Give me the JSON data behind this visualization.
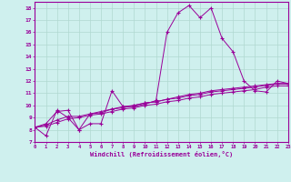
{
  "xlabel": "Windchill (Refroidissement éolien,°C)",
  "background_color": "#cff0ee",
  "line_color": "#990099",
  "x_data": [
    0,
    1,
    2,
    3,
    4,
    5,
    6,
    7,
    8,
    9,
    10,
    11,
    12,
    13,
    14,
    15,
    16,
    17,
    18,
    19,
    20,
    21,
    22,
    23
  ],
  "series": [
    [
      8.2,
      7.5,
      9.6,
      9.0,
      8.0,
      8.5,
      8.5,
      11.2,
      9.9,
      9.9,
      10.1,
      10.4,
      16.0,
      17.6,
      18.2,
      17.2,
      18.0,
      15.5,
      14.4,
      12.0,
      11.2,
      11.1,
      12.0,
      11.8
    ],
    [
      8.2,
      8.5,
      9.5,
      9.6,
      8.0,
      9.3,
      9.4,
      9.7,
      9.8,
      10.0,
      10.2,
      10.3,
      10.5,
      10.7,
      10.9,
      11.0,
      11.2,
      11.3,
      11.4,
      11.5,
      11.6,
      11.7,
      11.8,
      11.8
    ],
    [
      8.2,
      8.4,
      8.8,
      9.1,
      9.1,
      9.3,
      9.5,
      9.7,
      9.9,
      10.0,
      10.2,
      10.3,
      10.5,
      10.6,
      10.8,
      10.9,
      11.1,
      11.2,
      11.3,
      11.4,
      11.5,
      11.65,
      11.75,
      11.75
    ],
    [
      8.2,
      8.3,
      8.6,
      8.9,
      9.0,
      9.2,
      9.3,
      9.5,
      9.7,
      9.8,
      10.0,
      10.1,
      10.3,
      10.4,
      10.6,
      10.7,
      10.9,
      11.0,
      11.1,
      11.2,
      11.3,
      11.5,
      11.6,
      11.6
    ]
  ],
  "xlim": [
    0,
    23
  ],
  "ylim": [
    7,
    18.5
  ],
  "xtick_vals": [
    0,
    1,
    2,
    3,
    4,
    5,
    6,
    7,
    8,
    9,
    10,
    11,
    12,
    13,
    14,
    15,
    16,
    17,
    18,
    19,
    20,
    21,
    22,
    23
  ],
  "xtick_labels": [
    "0",
    "1",
    "2",
    "3",
    "4",
    "5",
    "6",
    "7",
    "8",
    "9",
    "10",
    "11",
    "12",
    "13",
    "14",
    "15",
    "16",
    "17",
    "18",
    "19",
    "20",
    "21",
    "22",
    "23"
  ],
  "ytick_vals": [
    7,
    8,
    9,
    10,
    11,
    12,
    13,
    14,
    15,
    16,
    17,
    18
  ],
  "ytick_labels": [
    "7",
    "8",
    "9",
    "10",
    "11",
    "12",
    "13",
    "14",
    "15",
    "16",
    "17",
    "18"
  ],
  "grid_color": "#b0d8d0",
  "font_color": "#990099",
  "marker": "+"
}
